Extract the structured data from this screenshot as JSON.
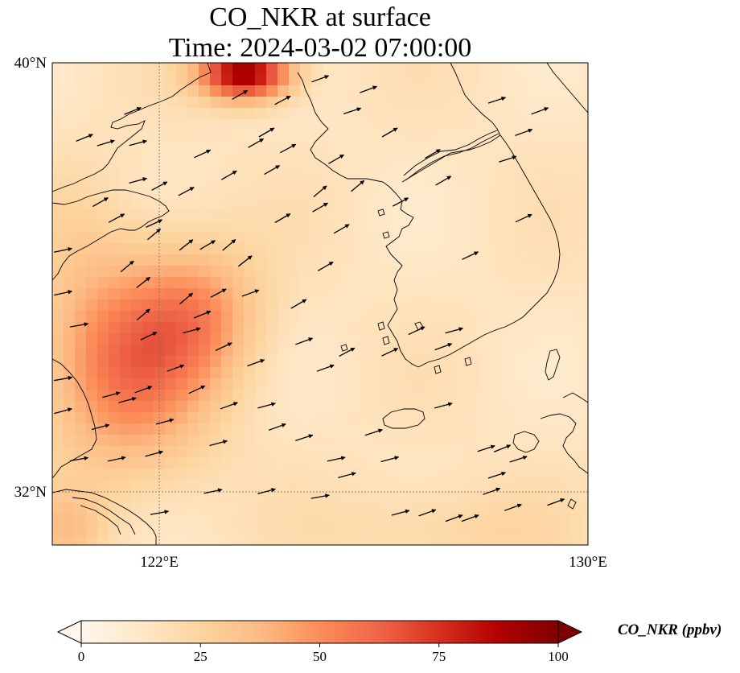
{
  "title": {
    "line1": "CO_NKR at surface",
    "line2": "Time: 2024-03-02 07:00:00"
  },
  "map": {
    "lon_range": [
      120.0,
      130.0
    ],
    "lat_range": [
      31.0,
      40.0
    ],
    "x_ticks": [
      {
        "lon": 122,
        "label": "122°E"
      },
      {
        "lon": 130,
        "label": "130°E"
      }
    ],
    "y_ticks": [
      {
        "lat": 40,
        "label": "40°N"
      },
      {
        "lat": 32,
        "label": "32°N"
      }
    ],
    "gridlines": "dotted at 122°E and 32°N",
    "field": {
      "variable": "CO_NKR",
      "units": "ppbv",
      "background_ppbv": 15,
      "hotspots": [
        {
          "lon": 121.4,
          "lat": 34.4,
          "peak_ppbv": 58,
          "spread_lon": 1.1,
          "spread_lat": 1.4
        },
        {
          "lon": 122.8,
          "lat": 35.3,
          "peak_ppbv": 40,
          "spread_lon": 0.8,
          "spread_lat": 0.9
        },
        {
          "lon": 123.6,
          "lat": 39.8,
          "peak_ppbv": 95,
          "spread_lon": 0.6,
          "spread_lat": 0.35
        },
        {
          "lon": 120.3,
          "lat": 31.3,
          "peak_ppbv": 32,
          "spread_lon": 0.5,
          "spread_lat": 0.5
        },
        {
          "lon": 127.3,
          "lat": 31.3,
          "peak_ppbv": 25,
          "spread_lon": 1.5,
          "spread_lat": 0.6
        },
        {
          "lon": 120.5,
          "lat": 37.0,
          "peak_ppbv": 20,
          "spread_lon": 0.6,
          "spread_lat": 1.0
        }
      ]
    },
    "wind_vectors": [
      [
        120.6,
        38.6,
        22
      ],
      [
        121.0,
        38.5,
        17
      ],
      [
        121.6,
        37.8,
        15
      ],
      [
        121.9,
        36.8,
        40
      ],
      [
        122.5,
        36.6,
        38
      ],
      [
        122.9,
        36.6,
        30
      ],
      [
        123.3,
        36.6,
        40
      ],
      [
        123.6,
        36.3,
        38
      ],
      [
        121.4,
        36.2,
        40
      ],
      [
        121.7,
        35.9,
        38
      ],
      [
        122.5,
        35.6,
        40
      ],
      [
        123.1,
        35.7,
        28
      ],
      [
        123.7,
        35.7,
        20
      ],
      [
        121.7,
        35.3,
        40
      ],
      [
        122.8,
        35.3,
        22
      ],
      [
        124.6,
        35.5,
        30
      ],
      [
        125.1,
        36.2,
        30
      ],
      [
        125.0,
        37.3,
        30
      ],
      [
        124.3,
        37.1,
        30
      ],
      [
        125.4,
        36.9,
        30
      ],
      [
        126.5,
        37.4,
        28
      ],
      [
        126.8,
        35.0,
        25
      ],
      [
        127.3,
        34.7,
        20
      ],
      [
        127.5,
        35.0,
        15
      ],
      [
        127.8,
        36.4,
        25
      ],
      [
        128.8,
        37.1,
        25
      ],
      [
        128.8,
        38.7,
        20
      ],
      [
        129.1,
        39.1,
        20
      ],
      [
        128.3,
        39.3,
        18
      ],
      [
        128.5,
        38.2,
        18
      ],
      [
        127.3,
        37.8,
        30
      ],
      [
        127.1,
        38.3,
        30
      ],
      [
        126.3,
        38.7,
        30
      ],
      [
        125.9,
        39.5,
        20
      ],
      [
        125.6,
        39.1,
        18
      ],
      [
        125.0,
        39.7,
        20
      ],
      [
        124.0,
        38.7,
        30
      ],
      [
        123.8,
        38.5,
        30
      ],
      [
        124.4,
        38.4,
        28
      ],
      [
        124.1,
        38.0,
        30
      ],
      [
        125.3,
        38.2,
        30
      ],
      [
        125.7,
        37.7,
        40
      ],
      [
        125.0,
        37.6,
        40
      ],
      [
        123.5,
        39.4,
        30
      ],
      [
        124.3,
        39.3,
        28
      ],
      [
        121.5,
        39.1,
        22
      ],
      [
        121.6,
        38.5,
        15
      ],
      [
        122.5,
        37.6,
        28
      ],
      [
        122.0,
        37.7,
        28
      ],
      [
        120.9,
        37.4,
        30
      ],
      [
        121.2,
        37.1,
        28
      ],
      [
        121.9,
        37.0,
        25
      ],
      [
        122.8,
        38.3,
        25
      ],
      [
        123.3,
        37.9,
        30
      ],
      [
        121.8,
        34.9,
        25
      ],
      [
        122.3,
        34.3,
        20
      ],
      [
        122.7,
        33.9,
        25
      ],
      [
        123.2,
        34.7,
        25
      ],
      [
        123.8,
        34.4,
        20
      ],
      [
        124.7,
        34.8,
        20
      ],
      [
        125.1,
        34.3,
        20
      ],
      [
        125.5,
        34.6,
        28
      ],
      [
        126.3,
        34.6,
        25
      ],
      [
        124.0,
        33.6,
        15
      ],
      [
        124.2,
        33.2,
        20
      ],
      [
        125.3,
        32.6,
        12
      ],
      [
        126.3,
        32.6,
        15
      ],
      [
        126.0,
        33.1,
        18
      ],
      [
        124.7,
        33.0,
        18
      ],
      [
        123.1,
        32.9,
        15
      ],
      [
        123.3,
        33.6,
        20
      ],
      [
        122.1,
        33.3,
        15
      ],
      [
        121.9,
        32.7,
        15
      ],
      [
        121.7,
        33.9,
        20
      ],
      [
        121.4,
        33.7,
        15
      ],
      [
        120.9,
        33.2,
        15
      ],
      [
        121.1,
        33.8,
        15
      ],
      [
        121.2,
        32.6,
        12
      ],
      [
        122.0,
        31.6,
        10
      ],
      [
        123.0,
        32.0,
        12
      ],
      [
        124.0,
        32.0,
        15
      ],
      [
        125.0,
        31.9,
        10
      ],
      [
        125.5,
        32.3,
        15
      ],
      [
        126.5,
        31.6,
        15
      ],
      [
        127.0,
        31.6,
        20
      ],
      [
        127.5,
        31.5,
        20
      ],
      [
        127.8,
        31.5,
        20
      ],
      [
        128.2,
        32.0,
        20
      ],
      [
        128.6,
        31.7,
        20
      ],
      [
        129.4,
        31.8,
        20
      ],
      [
        128.3,
        32.3,
        18
      ],
      [
        128.4,
        32.8,
        22
      ],
      [
        128.1,
        32.8,
        18
      ],
      [
        128.7,
        32.6,
        18
      ],
      [
        127.3,
        33.6,
        15
      ],
      [
        120.5,
        32.6,
        10
      ],
      [
        120.2,
        33.5,
        15
      ],
      [
        120.2,
        34.1,
        10
      ],
      [
        120.5,
        35.1,
        10
      ],
      [
        120.2,
        35.7,
        12
      ],
      [
        120.2,
        36.5,
        12
      ],
      [
        122.6,
        35.0,
        15
      ]
    ]
  },
  "colorbar": {
    "label": "CO_NKR (ppbv)",
    "vmin": 0,
    "vmax": 100,
    "ticks": [
      "0",
      "25",
      "50",
      "75",
      "100"
    ],
    "colormap": "OrRd",
    "extend": "both"
  }
}
